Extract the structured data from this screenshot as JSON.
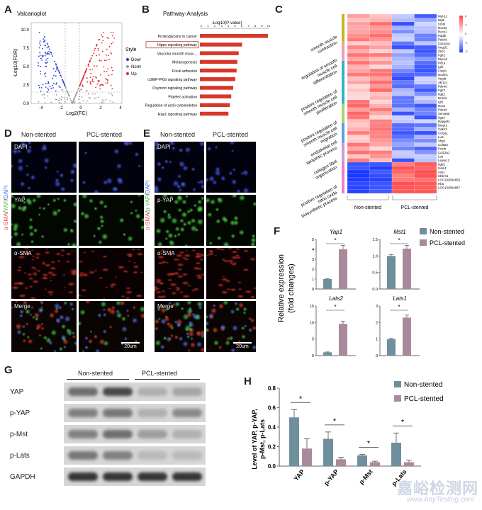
{
  "panels": {
    "A": "A",
    "B": "B",
    "C": "C",
    "D": "D",
    "E": "E",
    "F": "F",
    "G": "G",
    "H": "H"
  },
  "volcano": {
    "title": "Valcanoplot",
    "ylabel": "-Log10(FDR)",
    "xlabel": "Log2(FC)",
    "yticks": [
      "0.0",
      "2.5",
      "5.0",
      "7.5",
      "10.0"
    ],
    "xticks": [
      "-4",
      "-2",
      "0",
      "2",
      "4"
    ],
    "legend_title": "Style",
    "legend": [
      {
        "label": "Down",
        "color": "#2a3bd6"
      },
      {
        "label": "Normal",
        "color": "#9a9a9a"
      },
      {
        "label": "Up",
        "color": "#e0252a"
      }
    ]
  },
  "pathway": {
    "title": "Pathway-Analysis",
    "axis_label": "-Log10(P-value)",
    "items": [
      {
        "label": "Proteoglycans in cancer",
        "value": 1.0
      },
      {
        "label": "Hippo signaling pathway",
        "value": 0.62,
        "boxed": true
      },
      {
        "label": "Vascular smooth musc...",
        "value": 0.57
      },
      {
        "label": "Melanogenesis",
        "value": 0.55
      },
      {
        "label": "Focal adhesion",
        "value": 0.54
      },
      {
        "label": "cGMP-PKG signaling pathway",
        "value": 0.52
      },
      {
        "label": "Oxytocin signaling pathway",
        "value": 0.49
      },
      {
        "label": "Platelet activation",
        "value": 0.46
      },
      {
        "label": "Regulation of actin cytoskeleton",
        "value": 0.44
      },
      {
        "label": "Rap1 signaling pathway",
        "value": 0.42
      }
    ],
    "bar_color": "#d8382a"
  },
  "heatmap": {
    "groups": [
      {
        "label": "smooth muscle contraction",
        "color": "#c8b41e",
        "rows": 7
      },
      {
        "label": "regulation of smooth muscle cell differentiation",
        "color": "#e8a2b8",
        "rows": 5
      },
      {
        "label": "positive regulation of smooth muscle cell proliferation",
        "color": "#2cb6c8",
        "rows": 11
      },
      {
        "label": "positive regulation of smooth muscle cell migration",
        "color": "#a9d46a",
        "rows": 5
      },
      {
        "label": "endothelial cell apoptotic process",
        "color": "#5aa0e0",
        "rows": 5
      },
      {
        "label": "collagen fibril organization",
        "color": "#c79ad8",
        "rows": 5
      },
      {
        "label": "positive regulation of nitric oxide biosynthetic process",
        "color": "#e880d0",
        "rows": 8
      }
    ],
    "genes": [
      "Myl-11",
      "Mylk",
      "Smtn",
      "Rock2",
      "Rock1",
      "Pdgfb",
      "Pde4d",
      "Cacna1c",
      "Kng1l1",
      "Zeb1",
      "Fgfr2",
      "Mycod",
      "Hif1a",
      "Igf1",
      "Foxp1",
      "Notch1",
      "Vegfa",
      "Akr1c1",
      "Pde4d",
      "Fgfr2",
      "Itga2",
      "Nr4a3",
      "Igf1",
      "Nox4",
      "Pde4d",
      "Sema6d",
      "Itga2",
      "Rapgef4",
      "Bmpr2",
      "Cdkn3",
      "Col1a1",
      "Lum",
      "Sfrp2",
      "Col5a2",
      "Postn",
      "Col12a1",
      "Lox",
      "Lepre12",
      "Itgb2",
      "Icam1",
      "Ass1",
      "Hbb-b1",
      "LOC103694855",
      "Hba",
      "LOC103694857"
    ],
    "col_labels": [
      "Non-stented",
      "PCL-stented"
    ],
    "colorbar_ticks": [
      "2",
      "1",
      "0",
      "-1",
      "-2"
    ]
  },
  "panelD": {
    "columns": [
      "Non-stented",
      "PCL-stented"
    ],
    "row_labels": [
      "DAPI",
      "YAP",
      "α-SMA",
      "Merge"
    ],
    "side_label": "α-SMA/YAP/DAPI",
    "scale": "20um"
  },
  "panelE": {
    "columns": [
      "Non-stented",
      "PCL-stented"
    ],
    "row_labels": [
      "DAPI",
      "p-YAP",
      "α-SMA",
      "Merge"
    ],
    "side_label": "α-SMA/p-YAP/DAPI",
    "scale": "20um"
  },
  "panelF": {
    "ylabel": "Relative expression",
    "ylabel2": "(fold changes)",
    "legend": [
      {
        "label": "Non-stented",
        "color": "#6f8f9c"
      },
      {
        "label": "PCL-stented",
        "color": "#a98a9c"
      }
    ],
    "star": "*"
  },
  "panelG": {
    "group_labels": [
      "Non-stented",
      "PCL-stented"
    ],
    "rows": [
      "YAP",
      "p-YAP",
      "p-Mst",
      "p-Lats",
      "GAPDH"
    ]
  },
  "panelH": {
    "ylabel": "Level of YAP, p-YAP,",
    "ylabel2": "p-Mst, p-Lats",
    "yticks": [
      "0.0",
      "0.2",
      "0.4",
      "0.6",
      "0.8"
    ],
    "star": "*",
    "legend": [
      {
        "label": "Non-stented",
        "color": "#6f8f9c"
      },
      {
        "label": "PCL-stented",
        "color": "#a98a9c"
      }
    ]
  },
  "watermark": {
    "cn": "嘉峪检测网",
    "en": "www.AnyTesting.com"
  },
  "chart_data": [
    {
      "type": "bar",
      "title": "Pathway-Analysis",
      "xlabel": "-Log10(P-value)",
      "categories": [
        "Proteoglycans in cancer",
        "Hippo signaling pathway",
        "Vascular smooth musc...",
        "Melanogenesis",
        "Focal adhesion",
        "cGMP-PKG signaling pathway",
        "Oxytocin signaling pathway",
        "Platelet activation",
        "Regulation of actin cytoskeleton",
        "Rap1 signaling pathway"
      ],
      "values": [
        1.0,
        0.62,
        0.57,
        0.55,
        0.54,
        0.52,
        0.49,
        0.46,
        0.44,
        0.42
      ]
    },
    {
      "type": "bar",
      "title": "Yap1",
      "categories": [
        "Non-stented",
        "PCL-stented"
      ],
      "values": [
        1.0,
        4.0
      ],
      "errors": [
        0.05,
        0.4
      ],
      "ylim": [
        0,
        5
      ],
      "yticks": [
        "0",
        "1",
        "2",
        "3",
        "4",
        "5"
      ]
    },
    {
      "type": "bar",
      "title": "Mst1",
      "categories": [
        "Non-stented",
        "PCL-stented"
      ],
      "values": [
        1.0,
        1.22
      ],
      "errors": [
        0.04,
        0.1
      ],
      "ylim": [
        0,
        1.5
      ],
      "yticks": [
        "0.0",
        "0.5",
        "1.0",
        "1.5"
      ]
    },
    {
      "type": "bar",
      "title": "Lats2",
      "categories": [
        "Non-stented",
        "PCL-stented"
      ],
      "values": [
        1.0,
        9.6
      ],
      "errors": [
        0.1,
        0.8
      ],
      "ylim": [
        0,
        15
      ],
      "yticks": [
        "0",
        "5",
        "10",
        "15"
      ]
    },
    {
      "type": "bar",
      "title": "Lats1",
      "categories": [
        "Non-stented",
        "PCL-stented"
      ],
      "values": [
        1.0,
        2.3
      ],
      "errors": [
        0.05,
        0.15
      ],
      "ylim": [
        0,
        3
      ],
      "yticks": [
        "0",
        "1",
        "2",
        "3"
      ]
    },
    {
      "type": "bar",
      "categories": [
        "YAP",
        "p-YAP",
        "p-Mst",
        "p-Lats"
      ],
      "series": [
        {
          "name": "Non-stented",
          "values": [
            0.5,
            0.28,
            0.11,
            0.24
          ],
          "errors": [
            0.08,
            0.07,
            0.01,
            0.1
          ]
        },
        {
          "name": "PCL-stented",
          "values": [
            0.18,
            0.07,
            0.04,
            0.04
          ],
          "errors": [
            0.1,
            0.02,
            0.01,
            0.02
          ]
        }
      ],
      "ylim": [
        0,
        0.8
      ]
    }
  ]
}
